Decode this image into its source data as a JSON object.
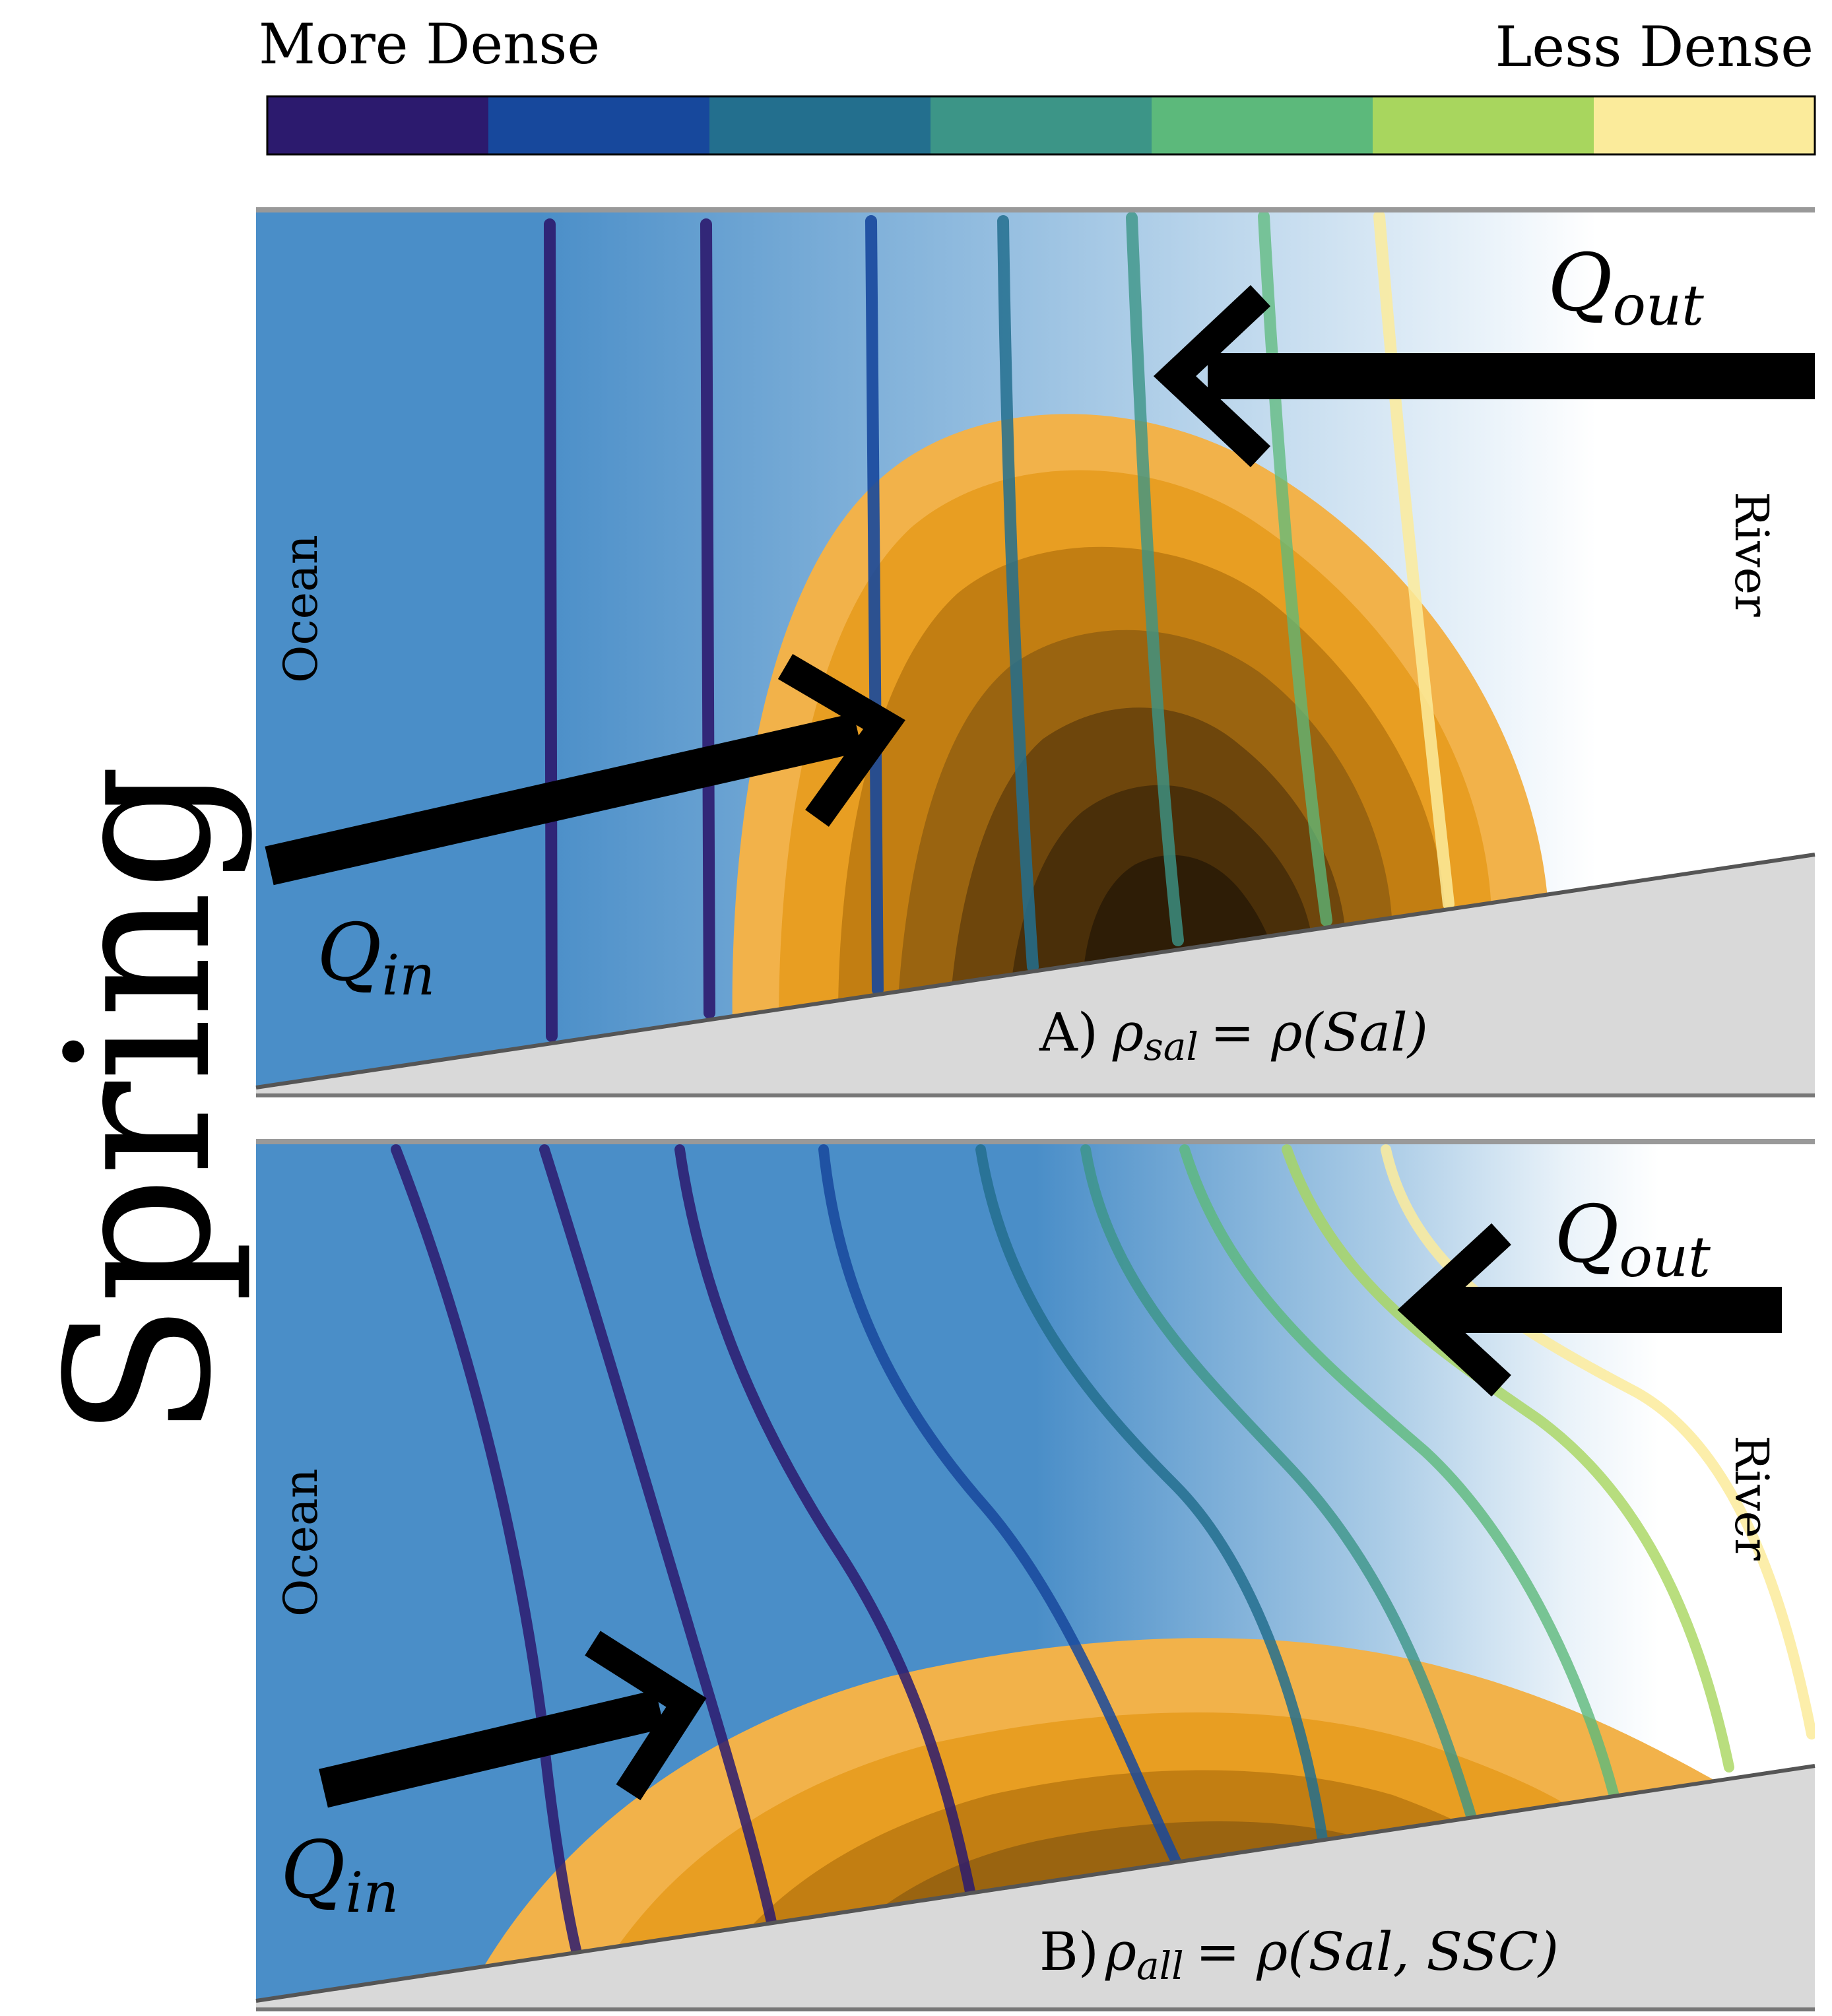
{
  "figure_title": "Spring",
  "colorbar": {
    "left_label": "More Dense",
    "right_label": "Less Dense",
    "colors": [
      "#2c1a6e",
      "#17489c",
      "#236f8e",
      "#3c9587",
      "#5cb97b",
      "#a8d65e",
      "#fbeb9b"
    ]
  },
  "panels": [
    {
      "id": "A",
      "ocean_label": "Ocean",
      "river_label": "River",
      "q_in": {
        "symbol": "Q",
        "subscript": "in"
      },
      "q_out": {
        "symbol": "Q",
        "subscript": "out"
      },
      "caption": {
        "prefix": "A)",
        "lhs": "ρ",
        "lhs_sub": "sal",
        "rhs": "= ρ(Sal)"
      }
    },
    {
      "id": "B",
      "ocean_label": "Ocean",
      "river_label": "River",
      "q_in": {
        "symbol": "Q",
        "subscript": "in"
      },
      "q_out": {
        "symbol": "Q",
        "subscript": "out"
      },
      "caption": {
        "prefix": "B)",
        "lhs": "ρ",
        "lhs_sub": "all",
        "rhs": "= ρ(Sal, SSC)"
      }
    }
  ],
  "colors": {
    "ocean": "#4a8ec8",
    "bed": "#d9d9d9",
    "sediment_layers": [
      "#f2b24a",
      "#e89e22",
      "#c27e12",
      "#9a6410",
      "#6e460c",
      "#4a2f09",
      "#2e1d06"
    ]
  }
}
